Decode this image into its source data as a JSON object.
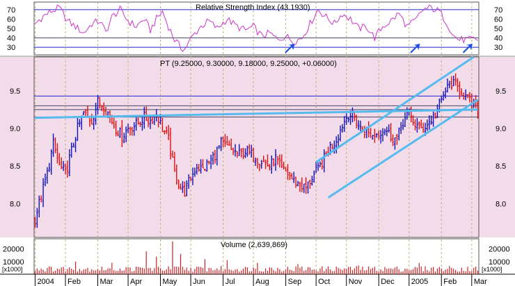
{
  "chart_data": {
    "type": "ohlc",
    "symbol": "PT",
    "quote_header": "PT (9.25000, 9.30000, 9.18000, 9.25000, +0.06000)",
    "last_bar": {
      "open": 9.25,
      "high": 9.3,
      "low": 9.18,
      "close": 9.25,
      "change": 0.06
    },
    "x_tick_labels": [
      "2004",
      "Feb",
      "Mar",
      "Apr",
      "May",
      "Jun",
      "Jul",
      "Aug",
      "Sep",
      "Oct",
      "Nov",
      "Dec",
      "2005",
      "Feb",
      "Mar"
    ],
    "panels": {
      "rsi": {
        "title": "Relative Strength Index (43.1930)",
        "value": 43.193,
        "y_ticks": [
          "70",
          "60",
          "50",
          "40",
          "30"
        ],
        "ylim": [
          22,
          78
        ],
        "levels": [
          70,
          30
        ],
        "extra_level": 40,
        "line_color": "#cc33cc",
        "arrow_color": "#1f4fe0",
        "series_keypoints": [
          [
            0,
            55
          ],
          [
            4,
            63
          ],
          [
            8,
            68
          ],
          [
            12,
            72
          ],
          [
            16,
            58
          ],
          [
            20,
            52
          ],
          [
            24,
            45
          ],
          [
            28,
            55
          ],
          [
            32,
            58
          ],
          [
            35,
            46
          ],
          [
            38,
            62
          ],
          [
            42,
            70
          ],
          [
            46,
            58
          ],
          [
            50,
            52
          ],
          [
            54,
            60
          ],
          [
            57,
            48
          ],
          [
            60,
            60
          ],
          [
            63,
            68
          ],
          [
            66,
            52
          ],
          [
            69,
            38
          ],
          [
            72,
            30
          ],
          [
            74,
            28
          ],
          [
            78,
            42
          ],
          [
            82,
            52
          ],
          [
            86,
            58
          ],
          [
            90,
            50
          ],
          [
            95,
            60
          ],
          [
            100,
            52
          ],
          [
            104,
            48
          ],
          [
            108,
            52
          ],
          [
            112,
            42
          ],
          [
            116,
            45
          ],
          [
            120,
            38
          ],
          [
            124,
            42
          ],
          [
            128,
            36
          ],
          [
            132,
            40
          ],
          [
            136,
            55
          ],
          [
            140,
            70
          ],
          [
            144,
            62
          ],
          [
            148,
            55
          ],
          [
            152,
            66
          ],
          [
            156,
            60
          ],
          [
            160,
            50
          ],
          [
            164,
            52
          ],
          [
            168,
            40
          ],
          [
            172,
            52
          ],
          [
            176,
            58
          ],
          [
            180,
            66
          ],
          [
            184,
            52
          ],
          [
            188,
            58
          ],
          [
            192,
            70
          ],
          [
            196,
            72
          ],
          [
            200,
            68
          ],
          [
            204,
            55
          ],
          [
            207,
            42
          ],
          [
            210,
            38
          ]
        ]
      },
      "price": {
        "y_ticks": [
          "9.5",
          "9.0",
          "8.5",
          "8.0"
        ],
        "ylim": [
          7.55,
          9.95
        ],
        "up_color": "#1111bb",
        "down_color": "#e01010",
        "horizontal_lines": [
          {
            "value": 9.43,
            "color": "#2222cc"
          },
          {
            "value": 9.3,
            "color": "#444466"
          },
          {
            "value": 9.25,
            "color": "#444466"
          },
          {
            "value": 9.15,
            "color": "#444466"
          }
        ],
        "trend_lines": [
          {
            "from": [
              139,
              8.55
            ],
            "to": [
              217,
              9.95
            ],
            "color": "#55bbee"
          },
          {
            "from": [
              145,
              8.08
            ],
            "to": [
              219,
              9.38
            ],
            "color": "#55bbee"
          },
          {
            "from": [
              0,
              9.14
            ],
            "to": [
              219,
              9.25
            ],
            "color": "#55bbee"
          }
        ],
        "close_keypoints": [
          [
            0,
            7.8
          ],
          [
            3,
            8.1
          ],
          [
            6,
            8.4
          ],
          [
            9,
            8.8
          ],
          [
            12,
            8.5
          ],
          [
            15,
            8.4
          ],
          [
            18,
            8.7
          ],
          [
            21,
            9.0
          ],
          [
            24,
            9.2
          ],
          [
            28,
            9.1
          ],
          [
            31,
            9.35
          ],
          [
            34,
            9.3
          ],
          [
            37,
            9.15
          ],
          [
            40,
            9.0
          ],
          [
            43,
            8.9
          ],
          [
            46,
            9.0
          ],
          [
            50,
            9.05
          ],
          [
            54,
            9.15
          ],
          [
            57,
            9.1
          ],
          [
            60,
            9.2
          ],
          [
            63,
            9.0
          ],
          [
            66,
            8.85
          ],
          [
            69,
            8.4
          ],
          [
            72,
            8.2
          ],
          [
            74,
            8.15
          ],
          [
            77,
            8.35
          ],
          [
            80,
            8.5
          ],
          [
            83,
            8.45
          ],
          [
            86,
            8.55
          ],
          [
            89,
            8.65
          ],
          [
            92,
            8.8
          ],
          [
            95,
            8.75
          ],
          [
            98,
            8.7
          ],
          [
            101,
            8.65
          ],
          [
            104,
            8.7
          ],
          [
            107,
            8.65
          ],
          [
            110,
            8.6
          ],
          [
            113,
            8.55
          ],
          [
            116,
            8.5
          ],
          [
            119,
            8.6
          ],
          [
            122,
            8.45
          ],
          [
            125,
            8.4
          ],
          [
            128,
            8.3
          ],
          [
            131,
            8.25
          ],
          [
            134,
            8.2
          ],
          [
            137,
            8.35
          ],
          [
            140,
            8.45
          ],
          [
            143,
            8.6
          ],
          [
            146,
            8.75
          ],
          [
            149,
            8.85
          ],
          [
            152,
            9.05
          ],
          [
            155,
            9.2
          ],
          [
            158,
            9.15
          ],
          [
            161,
            9.0
          ],
          [
            164,
            8.95
          ],
          [
            167,
            8.9
          ],
          [
            170,
            8.95
          ],
          [
            173,
            9.0
          ],
          [
            176,
            8.9
          ],
          [
            179,
            8.85
          ],
          [
            182,
            9.1
          ],
          [
            185,
            9.2
          ],
          [
            188,
            9.05
          ],
          [
            191,
            9.0
          ],
          [
            194,
            9.05
          ],
          [
            197,
            9.15
          ],
          [
            200,
            9.3
          ],
          [
            203,
            9.5
          ],
          [
            206,
            9.6
          ],
          [
            209,
            9.55
          ],
          [
            212,
            9.45
          ],
          [
            215,
            9.35
          ],
          [
            218,
            9.25
          ]
        ]
      },
      "volume": {
        "title": "Volume (2,639,869)",
        "value": 2639869,
        "y_ticks": [
          "20000",
          "10000"
        ],
        "unit_label": "x1000",
        "ylim": [
          0,
          28000
        ],
        "bar_color": "#cc2222",
        "spikes": [
          [
            20,
            10000
          ],
          [
            38,
            9000
          ],
          [
            55,
            18000
          ],
          [
            60,
            14000
          ],
          [
            68,
            26000
          ],
          [
            72,
            16000
          ],
          [
            84,
            12000
          ],
          [
            95,
            11000
          ],
          [
            110,
            9000
          ],
          [
            130,
            8000
          ],
          [
            160,
            7000
          ],
          [
            190,
            9000
          ],
          [
            205,
            6500
          ]
        ]
      }
    },
    "series_count": 220
  },
  "arrows": [
    {
      "name": "rsi-arrow-aug",
      "index": 126
    },
    {
      "name": "rsi-arrow-dec",
      "index": 188
    },
    {
      "name": "rsi-arrow-feb",
      "index": 214
    }
  ]
}
